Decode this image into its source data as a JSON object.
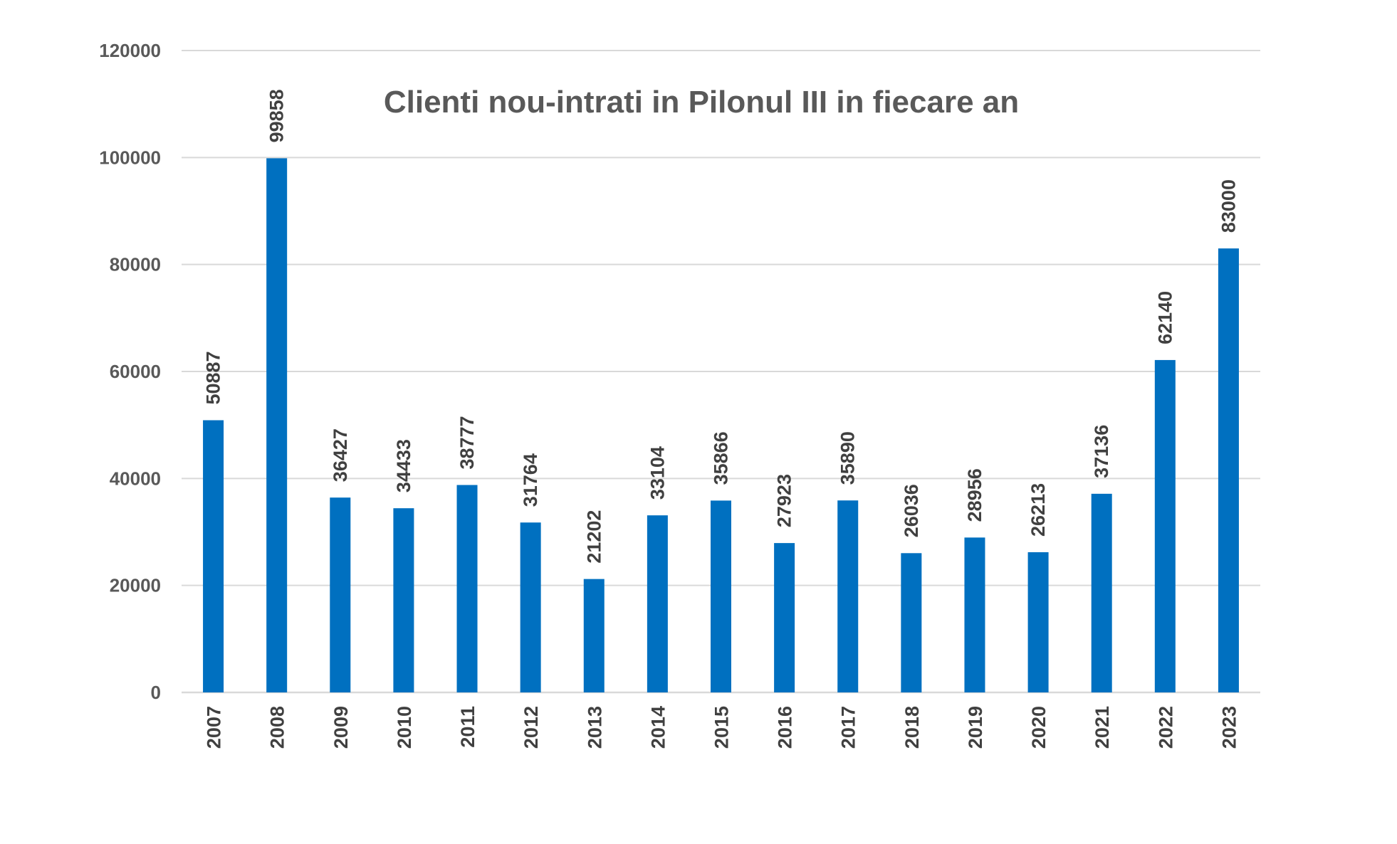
{
  "chart_data": {
    "type": "bar",
    "title": "Clienti nou-intrati in Pilonul III in fiecare an",
    "xlabel": "",
    "ylabel": "",
    "categories": [
      "2007",
      "2008",
      "2009",
      "2010",
      "2011",
      "2012",
      "2013",
      "2014",
      "2015",
      "2016",
      "2017",
      "2018",
      "2019",
      "2020",
      "2021",
      "2022",
      "2023"
    ],
    "values": [
      50887,
      99858,
      36427,
      34433,
      38777,
      31764,
      21202,
      33104,
      35866,
      27923,
      35890,
      26036,
      28956,
      26213,
      37136,
      62140,
      83000
    ],
    "data_labels": [
      "50887",
      "99858",
      "36427",
      "34433",
      "38777",
      "31764",
      "21202",
      "33104",
      "35866",
      "27923",
      "35890",
      "26036",
      "28956",
      "26213",
      "37136",
      "62140",
      "83000"
    ],
    "ylim": [
      0,
      120000
    ],
    "yticks": [
      0,
      20000,
      40000,
      60000,
      80000,
      100000,
      120000
    ],
    "ytick_labels": [
      "0",
      "20000",
      "40000",
      "60000",
      "80000",
      "100000",
      "120000"
    ],
    "grid": true,
    "legend": "none",
    "bar_color": "#0070c0"
  }
}
